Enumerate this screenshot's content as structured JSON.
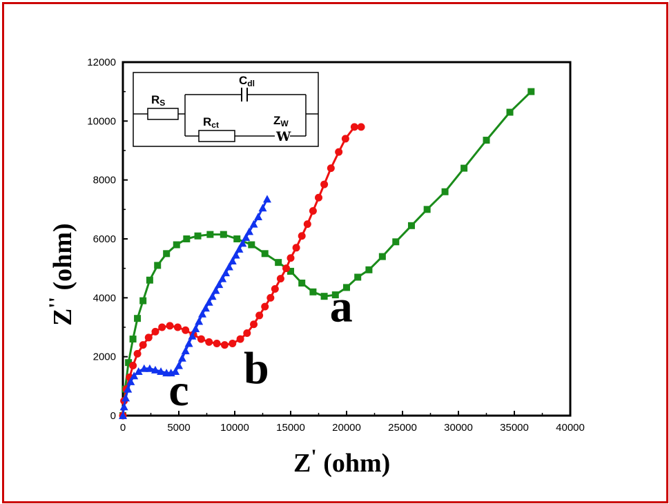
{
  "chart_data": {
    "type": "scatter",
    "xlabel_main": "Z",
    "xlabel_prime": "'",
    "xlabel_unit": "(ohm)",
    "ylabel_main": "Z",
    "ylabel_prime": "''",
    "ylabel_unit": "(ohm)",
    "xlim": [
      0,
      40000
    ],
    "ylim": [
      0,
      12000
    ],
    "x_ticks": [
      0,
      5000,
      10000,
      15000,
      20000,
      25000,
      30000,
      35000,
      40000
    ],
    "y_ticks": [
      0,
      2000,
      4000,
      6000,
      8000,
      10000,
      12000
    ],
    "x_tick_labels": [
      "0",
      "5000",
      "10000",
      "15000",
      "20000",
      "25000",
      "30000",
      "35000",
      "40000"
    ],
    "y_tick_labels": [
      "0",
      "2000",
      "4000",
      "6000",
      "8000",
      "10000",
      "12000"
    ],
    "grid": false,
    "series": [
      {
        "name": "a",
        "color": "#1a8c1a",
        "marker": "square",
        "x": [
          0,
          200,
          500,
          900,
          1300,
          1800,
          2400,
          3100,
          3900,
          4800,
          5700,
          6700,
          7800,
          9000,
          10200,
          11500,
          12700,
          13900,
          15000,
          16000,
          17000,
          18000,
          19000,
          20000,
          21000,
          22000,
          23200,
          24400,
          25800,
          27200,
          28800,
          30500,
          32500,
          34600,
          36500
        ],
        "y": [
          0,
          900,
          1800,
          2600,
          3300,
          3900,
          4600,
          5100,
          5500,
          5800,
          6000,
          6100,
          6150,
          6150,
          6000,
          5800,
          5500,
          5200,
          4900,
          4500,
          4200,
          4050,
          4100,
          4350,
          4700,
          4950,
          5400,
          5900,
          6450,
          7000,
          7600,
          8400,
          9350,
          10300,
          11000
        ]
      },
      {
        "name": "b",
        "color": "#ee1111",
        "marker": "circle",
        "x": [
          0,
          100,
          300,
          600,
          900,
          1300,
          1800,
          2300,
          2900,
          3500,
          4200,
          4900,
          5600,
          6300,
          7000,
          7700,
          8400,
          9100,
          9800,
          10500,
          11100,
          11700,
          12200,
          12700,
          13200,
          13600,
          14100,
          14600,
          15000,
          15500,
          16000,
          16500,
          17000,
          17500,
          18000,
          18600,
          19300,
          19900,
          20700,
          21300
        ],
        "y": [
          0,
          500,
          900,
          1300,
          1700,
          2100,
          2400,
          2650,
          2850,
          3000,
          3050,
          3000,
          2900,
          2750,
          2600,
          2500,
          2450,
          2400,
          2450,
          2600,
          2800,
          3100,
          3400,
          3700,
          4000,
          4300,
          4650,
          5000,
          5350,
          5700,
          6100,
          6500,
          6950,
          7400,
          7850,
          8400,
          8950,
          9400,
          9800,
          9800
        ]
      },
      {
        "name": "c",
        "color": "#1133ee",
        "marker": "triangle",
        "x": [
          0,
          100,
          250,
          450,
          700,
          1000,
          1400,
          1900,
          2400,
          2900,
          3400,
          3900,
          4300,
          4700,
          5000,
          5300,
          5600,
          5900,
          6200,
          6500,
          6800,
          7100,
          7400,
          7700,
          8000,
          8300,
          8600,
          8900,
          9200,
          9500,
          9800,
          10100,
          10400,
          10700,
          11000,
          11300,
          11700,
          12100,
          12500,
          12900
        ],
        "y": [
          0,
          300,
          600,
          900,
          1150,
          1350,
          1500,
          1600,
          1600,
          1550,
          1500,
          1450,
          1450,
          1500,
          1700,
          1950,
          2200,
          2450,
          2700,
          2950,
          3200,
          3450,
          3650,
          3850,
          4050,
          4250,
          4450,
          4650,
          4850,
          5050,
          5250,
          5450,
          5650,
          5850,
          6050,
          6250,
          6500,
          6750,
          7050,
          7350
        ]
      }
    ],
    "curve_labels": [
      {
        "text": "a",
        "x": 18500,
        "y": 3200
      },
      {
        "text": "b",
        "x": 10800,
        "y": 1100
      },
      {
        "text": "c",
        "x": 4100,
        "y": 350
      }
    ],
    "inset_circuit": {
      "rs": "R",
      "rs_sub": "S",
      "cdl": "C",
      "cdl_sub": "dl",
      "rct": "R",
      "rct_sub": "ct",
      "zw": "Z",
      "zw_sub": "W",
      "w_symbol": "W"
    }
  }
}
